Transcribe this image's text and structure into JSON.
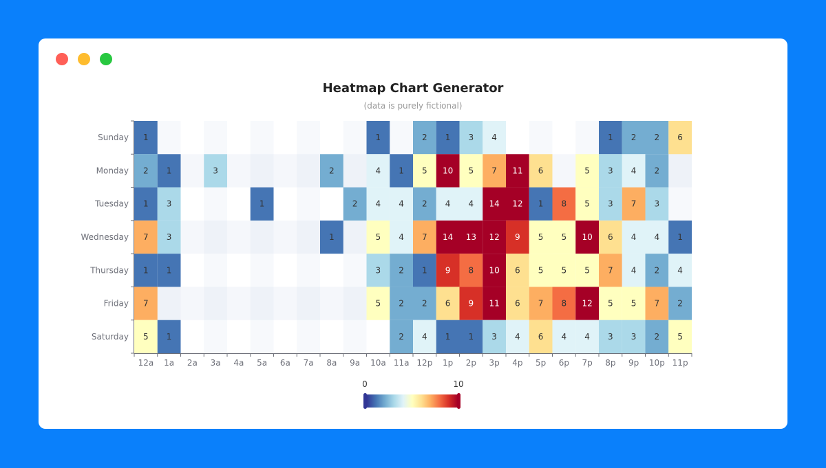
{
  "window": {
    "controls": [
      {
        "name": "close",
        "color": "#ff5f57"
      },
      {
        "name": "minimize",
        "color": "#febc2e"
      },
      {
        "name": "maximize",
        "color": "#28c840"
      }
    ]
  },
  "chart_data": {
    "type": "heatmap",
    "title": "Heatmap Chart Generator",
    "subtitle": "(data is purely fictional)",
    "x": [
      "12a",
      "1a",
      "2a",
      "3a",
      "4a",
      "5a",
      "6a",
      "7a",
      "8a",
      "9a",
      "10a",
      "11a",
      "12p",
      "1p",
      "2p",
      "3p",
      "4p",
      "5p",
      "6p",
      "7p",
      "8p",
      "9p",
      "10p",
      "11p"
    ],
    "y": [
      "Sunday",
      "Monday",
      "Tuesday",
      "Wednesday",
      "Thursday",
      "Friday",
      "Saturday"
    ],
    "values": [
      [
        1,
        null,
        null,
        null,
        null,
        null,
        null,
        null,
        null,
        null,
        1,
        null,
        2,
        1,
        3,
        4,
        null,
        null,
        null,
        null,
        1,
        2,
        2,
        6
      ],
      [
        2,
        1,
        null,
        3,
        null,
        null,
        null,
        null,
        2,
        null,
        4,
        1,
        5,
        10,
        5,
        7,
        11,
        6,
        null,
        5,
        3,
        4,
        2,
        null
      ],
      [
        1,
        3,
        null,
        null,
        null,
        1,
        null,
        null,
        null,
        2,
        4,
        4,
        2,
        4,
        4,
        14,
        12,
        1,
        8,
        5,
        3,
        7,
        3,
        null
      ],
      [
        7,
        3,
        null,
        null,
        null,
        null,
        null,
        null,
        1,
        null,
        5,
        4,
        7,
        14,
        13,
        12,
        9,
        5,
        5,
        10,
        6,
        4,
        4,
        1
      ],
      [
        1,
        1,
        null,
        null,
        null,
        null,
        null,
        null,
        null,
        null,
        3,
        2,
        1,
        9,
        8,
        10,
        6,
        5,
        5,
        5,
        7,
        4,
        2,
        4
      ],
      [
        7,
        null,
        null,
        null,
        null,
        null,
        null,
        null,
        null,
        null,
        5,
        2,
        2,
        6,
        9,
        11,
        6,
        7,
        8,
        12,
        5,
        5,
        7,
        2
      ],
      [
        5,
        1,
        null,
        null,
        null,
        null,
        null,
        null,
        null,
        null,
        null,
        2,
        4,
        1,
        1,
        3,
        4,
        6,
        4,
        4,
        3,
        3,
        2,
        5
      ]
    ],
    "visual_map": {
      "min": 0,
      "max": 10,
      "min_label": "0",
      "max_label": "10",
      "colors": [
        "#313695",
        "#4575b4",
        "#74add1",
        "#abd9e9",
        "#e0f3f8",
        "#ffffbf",
        "#fee090",
        "#fdae61",
        "#f46d43",
        "#d73027",
        "#a50026"
      ]
    },
    "split_area": true
  }
}
